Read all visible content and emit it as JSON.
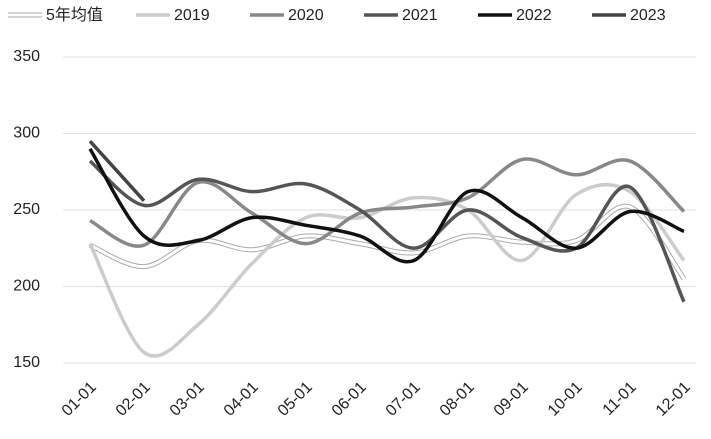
{
  "chart_data": {
    "type": "line",
    "categories": [
      "01-01",
      "02-01",
      "03-01",
      "04-01",
      "05-01",
      "06-01",
      "07-01",
      "08-01",
      "09-01",
      "10-01",
      "11-01",
      "12-01"
    ],
    "series": [
      {
        "name": "5年均值",
        "color": "#ffffff",
        "outline": "#aaaaaa",
        "values": [
          227,
          213,
          230,
          224,
          233,
          228,
          222,
          233,
          229,
          230,
          252,
          205
        ]
      },
      {
        "name": "2019",
        "color": "#cccccc",
        "values": [
          228,
          157,
          175,
          215,
          245,
          245,
          258,
          250,
          217,
          260,
          262,
          217
        ]
      },
      {
        "name": "2020",
        "color": "#888888",
        "values": [
          243,
          227,
          268,
          248,
          228,
          248,
          252,
          258,
          283,
          273,
          282,
          249
        ]
      },
      {
        "name": "2021",
        "color": "#555555",
        "values": [
          282,
          253,
          270,
          262,
          267,
          250,
          225,
          250,
          232,
          225,
          265,
          190
        ]
      },
      {
        "name": "2022",
        "color": "#111111",
        "values": [
          290,
          233,
          230,
          245,
          240,
          233,
          217,
          262,
          245,
          225,
          249,
          236
        ]
      },
      {
        "name": "2023",
        "color": "#444444",
        "values": [
          295,
          256,
          null,
          null,
          null,
          null,
          null,
          null,
          null,
          null,
          null,
          null
        ]
      }
    ],
    "ylim": [
      150,
      350
    ],
    "yticks": [
      150,
      200,
      250,
      300,
      350
    ],
    "grid": true
  }
}
